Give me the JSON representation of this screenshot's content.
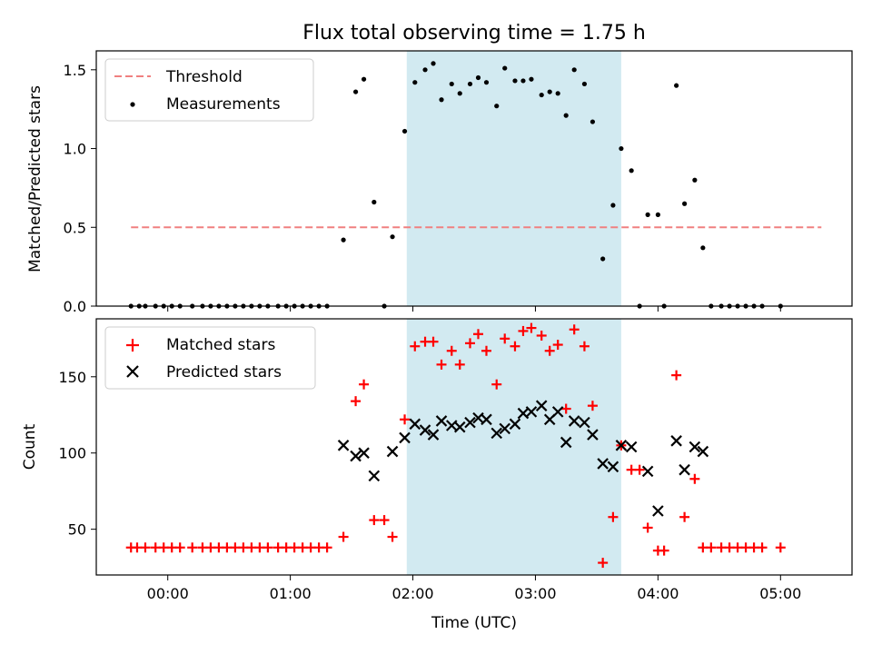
{
  "colors": {
    "matched": "#ff0000",
    "predicted": "#000000",
    "threshold": "#f08080",
    "shade": "#add8e6",
    "measurement": "#000000"
  },
  "chart_data": [
    {
      "type": "scatter",
      "title": "Flux total observing time = 1.75 h",
      "xlabel": "",
      "ylabel": "Matched/Predicted stars",
      "xlim": [
        "23:25",
        "05:35"
      ],
      "ylim": [
        0,
        1.62
      ],
      "yticks": [
        0.0,
        0.5,
        1.0,
        1.5
      ],
      "ytick_labels": [
        "0.0",
        "0.5",
        "1.0",
        "1.5"
      ],
      "shaded_interval": [
        "01:57",
        "03:42"
      ],
      "threshold": {
        "label": "Threshold",
        "value": 0.5,
        "x_range": [
          "23:42",
          "05:20"
        ]
      },
      "legend": [
        "Threshold",
        "Measurements"
      ],
      "legend_position": "upper left",
      "series": [
        {
          "name": "Measurements",
          "points": [
            [
              "23:42",
              0.0
            ],
            [
              "23:46",
              0.0
            ],
            [
              "23:49",
              0.0
            ],
            [
              "23:54",
              0.0
            ],
            [
              "23:58",
              0.0
            ],
            [
              "00:02",
              0.0
            ],
            [
              "00:06",
              0.0
            ],
            [
              "00:12",
              0.0
            ],
            [
              "00:17",
              0.0
            ],
            [
              "00:21",
              0.0
            ],
            [
              "00:25",
              0.0
            ],
            [
              "00:29",
              0.0
            ],
            [
              "00:33",
              0.0
            ],
            [
              "00:37",
              0.0
            ],
            [
              "00:41",
              0.0
            ],
            [
              "00:45",
              0.0
            ],
            [
              "00:49",
              0.0
            ],
            [
              "00:54",
              0.0
            ],
            [
              "00:58",
              0.0
            ],
            [
              "01:02",
              0.0
            ],
            [
              "01:06",
              0.0
            ],
            [
              "01:10",
              0.0
            ],
            [
              "01:14",
              0.0
            ],
            [
              "01:18",
              0.0
            ],
            [
              "01:26",
              0.42
            ],
            [
              "01:32",
              1.36
            ],
            [
              "01:36",
              1.44
            ],
            [
              "01:41",
              0.66
            ],
            [
              "01:46",
              0.0
            ],
            [
              "01:50",
              0.44
            ],
            [
              "01:56",
              1.11
            ],
            [
              "02:01",
              1.42
            ],
            [
              "02:06",
              1.5
            ],
            [
              "02:10",
              1.54
            ],
            [
              "02:14",
              1.31
            ],
            [
              "02:19",
              1.41
            ],
            [
              "02:23",
              1.35
            ],
            [
              "02:28",
              1.41
            ],
            [
              "02:32",
              1.45
            ],
            [
              "02:36",
              1.42
            ],
            [
              "02:41",
              1.27
            ],
            [
              "02:45",
              1.51
            ],
            [
              "02:50",
              1.43
            ],
            [
              "02:54",
              1.43
            ],
            [
              "02:58",
              1.44
            ],
            [
              "03:03",
              1.34
            ],
            [
              "03:07",
              1.36
            ],
            [
              "03:11",
              1.35
            ],
            [
              "03:15",
              1.21
            ],
            [
              "03:19",
              1.5
            ],
            [
              "03:24",
              1.41
            ],
            [
              "03:28",
              1.17
            ],
            [
              "03:33",
              0.3
            ],
            [
              "03:38",
              0.64
            ],
            [
              "03:42",
              1.0
            ],
            [
              "03:47",
              0.86
            ],
            [
              "03:51",
              0.0
            ],
            [
              "03:55",
              0.58
            ],
            [
              "04:00",
              0.58
            ],
            [
              "04:03",
              0.0
            ],
            [
              "04:09",
              1.4
            ],
            [
              "04:13",
              0.65
            ],
            [
              "04:18",
              0.8
            ],
            [
              "04:22",
              0.37
            ],
            [
              "04:26",
              0.0
            ],
            [
              "04:31",
              0.0
            ],
            [
              "04:35",
              0.0
            ],
            [
              "04:39",
              0.0
            ],
            [
              "04:43",
              0.0
            ],
            [
              "04:47",
              0.0
            ],
            [
              "04:51",
              0.0
            ],
            [
              "05:00",
              0.0
            ]
          ]
        }
      ]
    },
    {
      "type": "scatter",
      "title": "",
      "xlabel": "Time (UTC)",
      "ylabel": "Count",
      "xlim": [
        "23:25",
        "05:35"
      ],
      "ylim": [
        20,
        188
      ],
      "yticks": [
        50,
        100,
        150
      ],
      "ytick_labels": [
        "50",
        "100",
        "150"
      ],
      "xticks": [
        "00:00",
        "01:00",
        "02:00",
        "03:00",
        "04:00",
        "05:00"
      ],
      "xtick_labels": [
        "00:00",
        "01:00",
        "02:00",
        "03:00",
        "04:00",
        "05:00"
      ],
      "shaded_interval": [
        "01:57",
        "03:42"
      ],
      "legend": [
        "Matched stars",
        "Predicted stars"
      ],
      "legend_position": "upper left",
      "series": [
        {
          "name": "Matched stars",
          "marker": "+",
          "points": [
            [
              "23:42",
              38
            ],
            [
              "23:45",
              38
            ],
            [
              "23:49",
              38
            ],
            [
              "23:54",
              38
            ],
            [
              "23:58",
              38
            ],
            [
              "00:02",
              38
            ],
            [
              "00:06",
              38
            ],
            [
              "00:12",
              38
            ],
            [
              "00:17",
              38
            ],
            [
              "00:21",
              38
            ],
            [
              "00:25",
              38
            ],
            [
              "00:29",
              38
            ],
            [
              "00:33",
              38
            ],
            [
              "00:37",
              38
            ],
            [
              "00:41",
              38
            ],
            [
              "00:45",
              38
            ],
            [
              "00:49",
              38
            ],
            [
              "00:54",
              38
            ],
            [
              "00:58",
              38
            ],
            [
              "01:02",
              38
            ],
            [
              "01:06",
              38
            ],
            [
              "01:10",
              38
            ],
            [
              "01:14",
              38
            ],
            [
              "01:18",
              38
            ],
            [
              "01:26",
              45
            ],
            [
              "01:32",
              134
            ],
            [
              "01:36",
              145
            ],
            [
              "01:41",
              56
            ],
            [
              "01:46",
              56
            ],
            [
              "01:50",
              45
            ],
            [
              "01:56",
              122
            ],
            [
              "02:01",
              170
            ],
            [
              "02:06",
              173
            ],
            [
              "02:10",
              173
            ],
            [
              "02:14",
              158
            ],
            [
              "02:19",
              167
            ],
            [
              "02:23",
              158
            ],
            [
              "02:28",
              172
            ],
            [
              "02:32",
              178
            ],
            [
              "02:36",
              167
            ],
            [
              "02:41",
              145
            ],
            [
              "02:45",
              175
            ],
            [
              "02:50",
              170
            ],
            [
              "02:54",
              180
            ],
            [
              "02:58",
              182
            ],
            [
              "03:03",
              177
            ],
            [
              "03:07",
              167
            ],
            [
              "03:11",
              171
            ],
            [
              "03:15",
              129
            ],
            [
              "03:19",
              181
            ],
            [
              "03:24",
              170
            ],
            [
              "03:28",
              131
            ],
            [
              "03:33",
              28
            ],
            [
              "03:38",
              58
            ],
            [
              "03:42",
              105
            ],
            [
              "03:47",
              89
            ],
            [
              "03:51",
              89
            ],
            [
              "03:55",
              51
            ],
            [
              "04:00",
              36
            ],
            [
              "04:03",
              36
            ],
            [
              "04:09",
              151
            ],
            [
              "04:13",
              58
            ],
            [
              "04:18",
              83
            ],
            [
              "04:22",
              38
            ],
            [
              "04:26",
              38
            ],
            [
              "04:31",
              38
            ],
            [
              "04:35",
              38
            ],
            [
              "04:39",
              38
            ],
            [
              "04:43",
              38
            ],
            [
              "04:47",
              38
            ],
            [
              "04:51",
              38
            ],
            [
              "05:00",
              38
            ]
          ]
        },
        {
          "name": "Predicted stars",
          "marker": "x",
          "points": [
            [
              "01:26",
              105
            ],
            [
              "01:32",
              98
            ],
            [
              "01:36",
              100
            ],
            [
              "01:41",
              85
            ],
            [
              "01:50",
              101
            ],
            [
              "01:56",
              110
            ],
            [
              "02:01",
              119
            ],
            [
              "02:06",
              115
            ],
            [
              "02:10",
              112
            ],
            [
              "02:14",
              121
            ],
            [
              "02:19",
              118
            ],
            [
              "02:23",
              117
            ],
            [
              "02:28",
              120
            ],
            [
              "02:32",
              123
            ],
            [
              "02:36",
              122
            ],
            [
              "02:41",
              113
            ],
            [
              "02:45",
              116
            ],
            [
              "02:50",
              119
            ],
            [
              "02:54",
              126
            ],
            [
              "02:58",
              127
            ],
            [
              "03:03",
              131
            ],
            [
              "03:07",
              122
            ],
            [
              "03:11",
              127
            ],
            [
              "03:15",
              107
            ],
            [
              "03:19",
              121
            ],
            [
              "03:24",
              120
            ],
            [
              "03:28",
              112
            ],
            [
              "03:33",
              93
            ],
            [
              "03:38",
              91
            ],
            [
              "03:42",
              105
            ],
            [
              "03:47",
              104
            ],
            [
              "03:55",
              88
            ],
            [
              "04:00",
              62
            ],
            [
              "04:09",
              108
            ],
            [
              "04:13",
              89
            ],
            [
              "04:18",
              104
            ],
            [
              "04:22",
              101
            ]
          ]
        }
      ]
    }
  ]
}
